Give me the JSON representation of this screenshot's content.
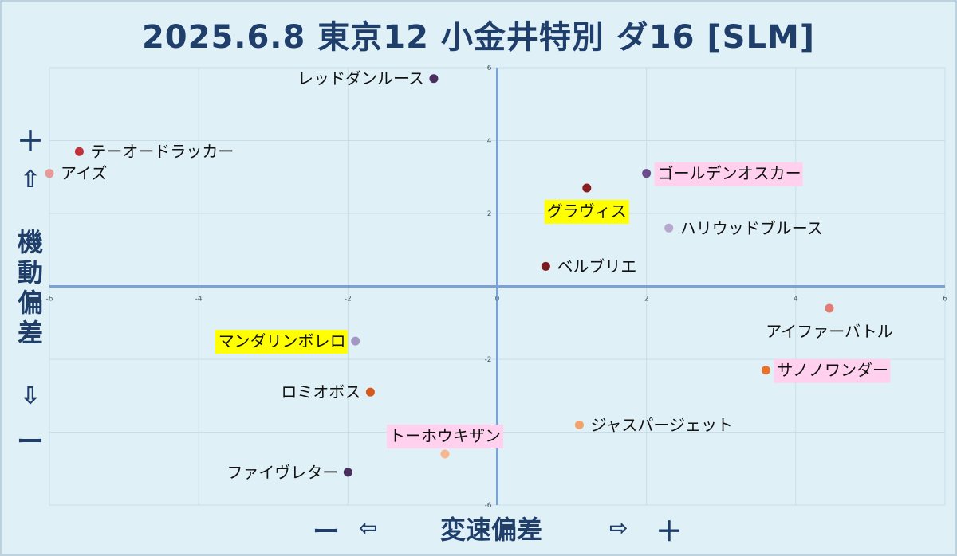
{
  "title": "2025.6.8 東京12 小金井特別 ダ16 [SLM]",
  "yaxis": {
    "plus": "＋",
    "up_arrow": "⇧",
    "label": "機動偏差",
    "down_arrow": "⇩",
    "minus": "ー"
  },
  "xaxis": {
    "minus": "ー",
    "left_arrow": "⇦",
    "label": "変速偏差",
    "right_arrow": "⇨",
    "plus": "＋"
  },
  "chart_data": {
    "type": "scatter",
    "xlim": [
      -6,
      6
    ],
    "ylim": [
      -6,
      6
    ],
    "x_ticks": [
      -6,
      -4,
      -2,
      0,
      2,
      4,
      6
    ],
    "y_ticks": [
      6,
      4,
      2,
      0,
      -2,
      -4,
      -6
    ],
    "x_tick_labels": [
      "-6",
      "-4",
      "-2",
      "0",
      "2",
      "4",
      "6"
    ],
    "y_tick_labels": [
      "6",
      "4",
      "2",
      "0",
      "-2",
      "-4",
      "-6"
    ],
    "points": [
      {
        "name": "レッドダンルース",
        "x": -0.85,
        "y": 5.7,
        "color": "#4a2f5e",
        "label_pos": "left",
        "highlight": "none"
      },
      {
        "name": "テーオードラッカー",
        "x": -5.6,
        "y": 3.7,
        "color": "#c0313a",
        "label_pos": "right",
        "highlight": "none"
      },
      {
        "name": "アイズ",
        "x": -6.0,
        "y": 3.1,
        "color": "#e89a98",
        "label_pos": "right",
        "highlight": "none"
      },
      {
        "name": "ゴールデンオスカー",
        "x": 2.0,
        "y": 3.1,
        "color": "#6b4c8a",
        "label_pos": "right",
        "highlight": "pink"
      },
      {
        "name": "グラヴィス",
        "x": 1.2,
        "y": 2.7,
        "color": "#8a1f22",
        "label_pos": "below",
        "highlight": "yellow"
      },
      {
        "name": "ハリウッドブルース",
        "x": 2.3,
        "y": 1.6,
        "color": "#b5a8cc",
        "label_pos": "right",
        "highlight": "none"
      },
      {
        "name": "ベルブリエ",
        "x": 0.65,
        "y": 0.55,
        "color": "#7a1a1e",
        "label_pos": "right",
        "highlight": "none"
      },
      {
        "name": "アイファーバトル",
        "x": 4.45,
        "y": -0.6,
        "color": "#e27b72",
        "label_pos": "below",
        "highlight": "none"
      },
      {
        "name": "マンダリンボレロ",
        "x": -1.9,
        "y": -1.5,
        "color": "#a597c4",
        "label_pos": "left",
        "highlight": "yellow"
      },
      {
        "name": "サノノワンダー",
        "x": 3.6,
        "y": -2.3,
        "color": "#e8712c",
        "label_pos": "right",
        "highlight": "pink"
      },
      {
        "name": "ロミオボス",
        "x": -1.7,
        "y": -2.9,
        "color": "#d45a1e",
        "label_pos": "left",
        "highlight": "none"
      },
      {
        "name": "ジャスパージェット",
        "x": 1.1,
        "y": -3.8,
        "color": "#f2a36a",
        "label_pos": "right",
        "highlight": "none"
      },
      {
        "name": "トーホウキザン",
        "x": -0.7,
        "y": -4.6,
        "color": "#f7b893",
        "label_pos": "above",
        "highlight": "pink"
      },
      {
        "name": "ファイヴレター",
        "x": -2.0,
        "y": -5.1,
        "color": "#4a2f5e",
        "label_pos": "left",
        "highlight": "none"
      }
    ]
  }
}
